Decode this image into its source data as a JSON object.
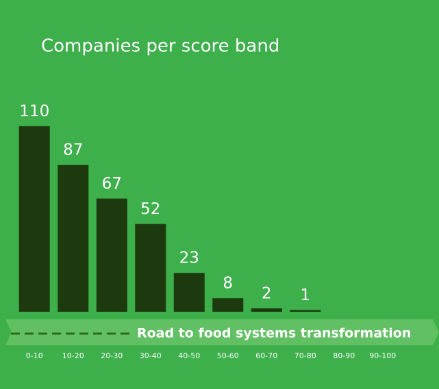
{
  "chart_data": {
    "type": "bar",
    "title": "Companies per score band",
    "categories": [
      "0-10",
      "10-20",
      "20-30",
      "30-40",
      "40-50",
      "50-60",
      "60-70",
      "70-80",
      "80-90",
      "90-100"
    ],
    "values": [
      110,
      87,
      67,
      52,
      23,
      8,
      2,
      1,
      null,
      null
    ],
    "color": "#1d3a0e",
    "annotation": "Road to food systems transformation"
  }
}
